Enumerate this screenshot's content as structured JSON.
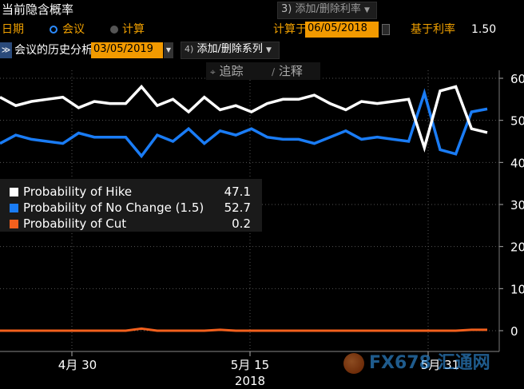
{
  "header": {
    "title": "当前隐含概率",
    "add_remove_rate": "添加/删除利率",
    "add_remove_rate_num": "3)",
    "date_label": "日期",
    "meeting_label": "会议",
    "calc_label": "计算",
    "calc_at_label": "计算于",
    "calc_date": "06/05/2018",
    "base_rate_label": "基于利率",
    "base_rate_value": "1.50"
  },
  "toolbar": {
    "history_label": "会议的历史分析",
    "history_date": "03/05/2019",
    "series_num": "4)",
    "series_label": "添加/删除系列",
    "track_label": "追踪",
    "annotate_label": "注释"
  },
  "watermark": "FX678 汇通网",
  "colors": {
    "hike": "#ffffff",
    "no_change": "#1a7cf5",
    "cut": "#f2601d",
    "accent": "#f29a00"
  },
  "chart_data": {
    "type": "line",
    "x_tick_labels": [
      "4月 30",
      "5月 15",
      "5月 31"
    ],
    "x_year_label": "2018",
    "y_ticks": [
      0,
      10,
      20,
      30,
      40,
      50,
      60
    ],
    "ylim": [
      0,
      60
    ],
    "grid": true,
    "legend": "top-left",
    "series": [
      {
        "name": "Probability of Hike",
        "last": "47.1",
        "color": "#ffffff",
        "values": [
          55.5,
          53.5,
          54.5,
          55,
          55.5,
          53,
          54.5,
          54,
          54,
          58,
          53.5,
          55,
          52,
          55.5,
          52.5,
          53.5,
          52,
          54,
          55,
          55,
          56,
          54,
          52.5,
          54.5,
          54,
          54.5,
          55,
          43.5,
          57,
          58,
          48,
          47.1
        ]
      },
      {
        "name": "Probability of No Change (1.5)",
        "last": "52.7",
        "color": "#1a7cf5",
        "values": [
          44.5,
          46.5,
          45.5,
          45,
          44.5,
          47,
          46,
          46,
          46,
          41.5,
          46.5,
          45,
          48,
          44.5,
          47.5,
          46.5,
          48,
          46,
          45.5,
          45.5,
          44.5,
          46,
          47.5,
          45.5,
          46,
          45.5,
          45,
          56.5,
          43,
          42,
          52,
          52.7
        ]
      },
      {
        "name": "Probability of Cut",
        "last": "0.2",
        "color": "#f2601d",
        "values": [
          0,
          0,
          0,
          0,
          0,
          0,
          0,
          0,
          0,
          0.5,
          0,
          0,
          0,
          0,
          0.2,
          0,
          0,
          0,
          0,
          0,
          0,
          0,
          0,
          0,
          0,
          0,
          0,
          0,
          0,
          0,
          0.2,
          0.2
        ]
      }
    ]
  }
}
